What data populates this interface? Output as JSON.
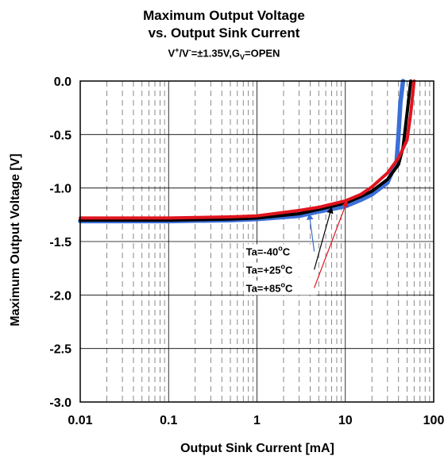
{
  "chart_data": {
    "type": "line",
    "title": "Maximum Output Voltage",
    "subtitle": "vs. Output Sink Current",
    "condition": {
      "prefix": "V",
      "sup1": "+",
      "sep": "/V",
      "sup2": "-",
      "mid": "=±1.35V,G",
      "sub": "V",
      "suffix": "=OPEN"
    },
    "xlabel": "Output Sink Current [mA]",
    "ylabel": "Maximum Output Voltage [V]",
    "x_scale": "log",
    "xlim": [
      0.01,
      100
    ],
    "ylim": [
      -3.0,
      0.0
    ],
    "x_ticks": [
      0.01,
      0.1,
      1,
      10,
      100
    ],
    "x_tick_labels": [
      "0.01",
      "0.1",
      "1",
      "10",
      "100"
    ],
    "y_ticks": [
      0.0,
      -0.5,
      -1.0,
      -1.5,
      -2.0,
      -2.5,
      -3.0
    ],
    "y_tick_labels": [
      "0.0",
      "-0.5",
      "-1.0",
      "-1.5",
      "-2.0",
      "-2.5",
      "-3.0"
    ],
    "grid": true,
    "series": [
      {
        "name": "Ta=-40°C",
        "label_parts": [
          "Ta=-40",
          "o",
          "C"
        ],
        "color": "#3b6fd8",
        "x": [
          0.01,
          0.1,
          0.5,
          1,
          3,
          5,
          10,
          15,
          20,
          30,
          38,
          40,
          42,
          45
        ],
        "y": [
          -1.31,
          -1.31,
          -1.3,
          -1.29,
          -1.26,
          -1.22,
          -1.17,
          -1.11,
          -1.06,
          -0.95,
          -0.75,
          -0.5,
          -0.2,
          0.0
        ]
      },
      {
        "name": "Ta=+25°C",
        "label_parts": [
          "Ta=+25",
          "o",
          "C"
        ],
        "color": "#000000",
        "x": [
          0.01,
          0.1,
          0.5,
          1,
          3,
          5,
          10,
          15,
          20,
          30,
          40,
          45,
          50,
          55
        ],
        "y": [
          -1.3,
          -1.3,
          -1.29,
          -1.28,
          -1.24,
          -1.2,
          -1.14,
          -1.08,
          -1.03,
          -0.92,
          -0.78,
          -0.62,
          -0.3,
          0.0
        ]
      },
      {
        "name": "Ta=+85°C",
        "label_parts": [
          "Ta=+85",
          "o",
          "C"
        ],
        "color": "#e0141e",
        "x": [
          0.01,
          0.1,
          0.5,
          1,
          3,
          5,
          10,
          15,
          20,
          30,
          40,
          50,
          55,
          60
        ],
        "y": [
          -1.28,
          -1.28,
          -1.27,
          -1.26,
          -1.21,
          -1.18,
          -1.12,
          -1.06,
          -0.99,
          -0.86,
          -0.72,
          -0.55,
          -0.3,
          0.0
        ]
      }
    ],
    "annotations": [
      {
        "series": 0,
        "text_x": 0.75,
        "text_y": -1.63,
        "arrow_to_x": 3.9,
        "arrow_to_y": -1.24
      },
      {
        "series": 1,
        "text_x": 0.75,
        "text_y": -1.8,
        "arrow_to_x": 7.0,
        "arrow_to_y": -1.18
      },
      {
        "series": 2,
        "text_x": 0.75,
        "text_y": -1.97,
        "arrow_to_x": 10.5,
        "arrow_to_y": -1.12
      }
    ]
  }
}
